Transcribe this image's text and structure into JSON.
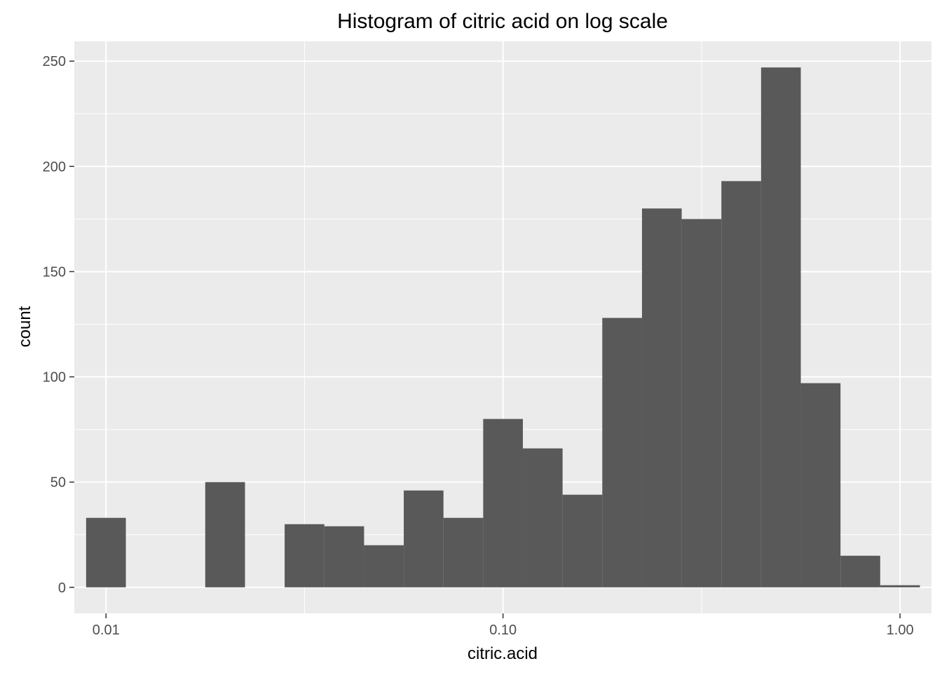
{
  "chart_data": {
    "type": "bar",
    "title": "Histogram of citric acid on log scale",
    "xlabel": "citric.acid",
    "ylabel": "count",
    "x_scale": "log10",
    "xlim": [
      0.00832,
      1.2
    ],
    "ylim": [
      -12.4,
      259.4
    ],
    "x_ticks": [
      {
        "value": 0.01,
        "label": "0.01"
      },
      {
        "value": 0.1,
        "label": "0.10"
      },
      {
        "value": 1.0,
        "label": "1.00"
      }
    ],
    "y_ticks": [
      {
        "value": 0,
        "label": "0"
      },
      {
        "value": 50,
        "label": "50"
      },
      {
        "value": 100,
        "label": "100"
      },
      {
        "value": 150,
        "label": "150"
      },
      {
        "value": 200,
        "label": "200"
      },
      {
        "value": 250,
        "label": "250"
      }
    ],
    "bins": [
      {
        "x0": 0.00891,
        "x1": 0.01122,
        "count": 33
      },
      {
        "x0": 0.01778,
        "x1": 0.02239,
        "count": 50
      },
      {
        "x0": 0.02818,
        "x1": 0.03548,
        "count": 30
      },
      {
        "x0": 0.03548,
        "x1": 0.04467,
        "count": 29
      },
      {
        "x0": 0.04467,
        "x1": 0.05623,
        "count": 20
      },
      {
        "x0": 0.05623,
        "x1": 0.07079,
        "count": 46
      },
      {
        "x0": 0.07079,
        "x1": 0.08913,
        "count": 33
      },
      {
        "x0": 0.08913,
        "x1": 0.1122,
        "count": 80
      },
      {
        "x0": 0.1122,
        "x1": 0.14125,
        "count": 66
      },
      {
        "x0": 0.14125,
        "x1": 0.17783,
        "count": 44
      },
      {
        "x0": 0.17783,
        "x1": 0.22387,
        "count": 128
      },
      {
        "x0": 0.22387,
        "x1": 0.28184,
        "count": 180
      },
      {
        "x0": 0.28184,
        "x1": 0.35481,
        "count": 175
      },
      {
        "x0": 0.35481,
        "x1": 0.44668,
        "count": 193
      },
      {
        "x0": 0.44668,
        "x1": 0.56234,
        "count": 247
      },
      {
        "x0": 0.56234,
        "x1": 0.70795,
        "count": 97
      },
      {
        "x0": 0.70795,
        "x1": 0.89125,
        "count": 15
      },
      {
        "x0": 0.89125,
        "x1": 1.12202,
        "count": 1
      }
    ],
    "grid": true,
    "colors": {
      "panel_background": "#ebebeb",
      "grid_major": "#ffffff",
      "bar_fill": "#595959"
    }
  }
}
